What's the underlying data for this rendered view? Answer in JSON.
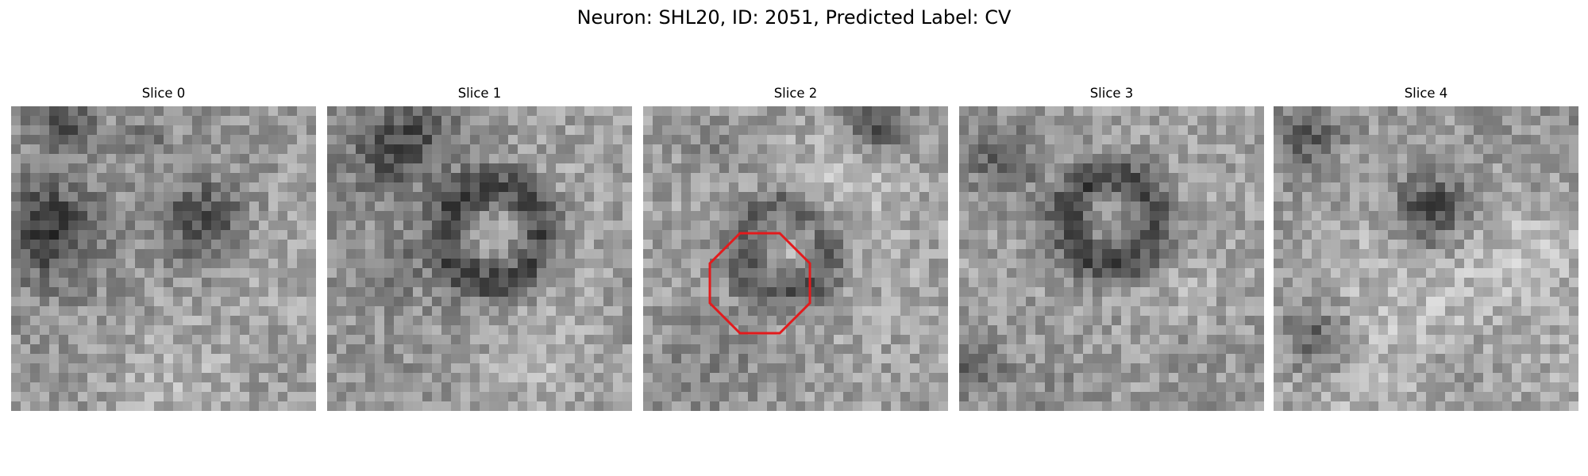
{
  "figure": {
    "title": "Neuron: SHL20, ID: 2051, Predicted Label: CV"
  },
  "slices": [
    {
      "title": "Slice 0",
      "index": 0,
      "marker": false
    },
    {
      "title": "Slice 1",
      "index": 1,
      "marker": false
    },
    {
      "title": "Slice 2",
      "index": 2,
      "marker": true
    },
    {
      "title": "Slice 3",
      "index": 3,
      "marker": false
    },
    {
      "title": "Slice 4",
      "index": 4,
      "marker": false
    }
  ],
  "colors": {
    "background": "#ffffff",
    "marker": "#e31a1c",
    "colormap": "grayscale"
  }
}
